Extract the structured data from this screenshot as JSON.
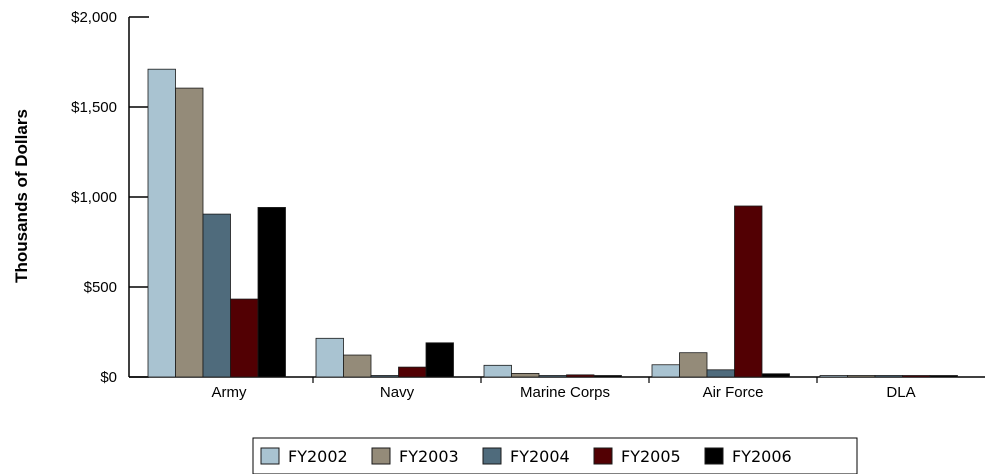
{
  "chart_data": {
    "type": "bar",
    "categories": [
      "Army",
      "Navy",
      "Marine Corps",
      "Air Force",
      "DLA"
    ],
    "series": [
      {
        "name": "FY2002",
        "color": "#a9c3d1",
        "values": [
          1710,
          215,
          65,
          68,
          3
        ]
      },
      {
        "name": "FY2003",
        "color": "#948b79",
        "values": [
          1605,
          122,
          20,
          135,
          2
        ]
      },
      {
        "name": "FY2004",
        "color": "#4f6b7c",
        "values": [
          905,
          3,
          8,
          40,
          2
        ]
      },
      {
        "name": "FY2005",
        "color": "#520003",
        "values": [
          433,
          55,
          12,
          950,
          2
        ]
      },
      {
        "name": "FY2006",
        "color": "#000000",
        "values": [
          942,
          190,
          3,
          18,
          4
        ]
      }
    ],
    "ylabel": "Thousands of Dollars",
    "xlabel": "",
    "ylim": [
      0,
      2000
    ],
    "yticks": [
      0,
      500,
      1000,
      1500,
      2000
    ],
    "ytick_labels": [
      "$0",
      "$500",
      "$1,000",
      "$1,500",
      "$2,000"
    ],
    "grid": false,
    "legend_position": "bottom"
  }
}
